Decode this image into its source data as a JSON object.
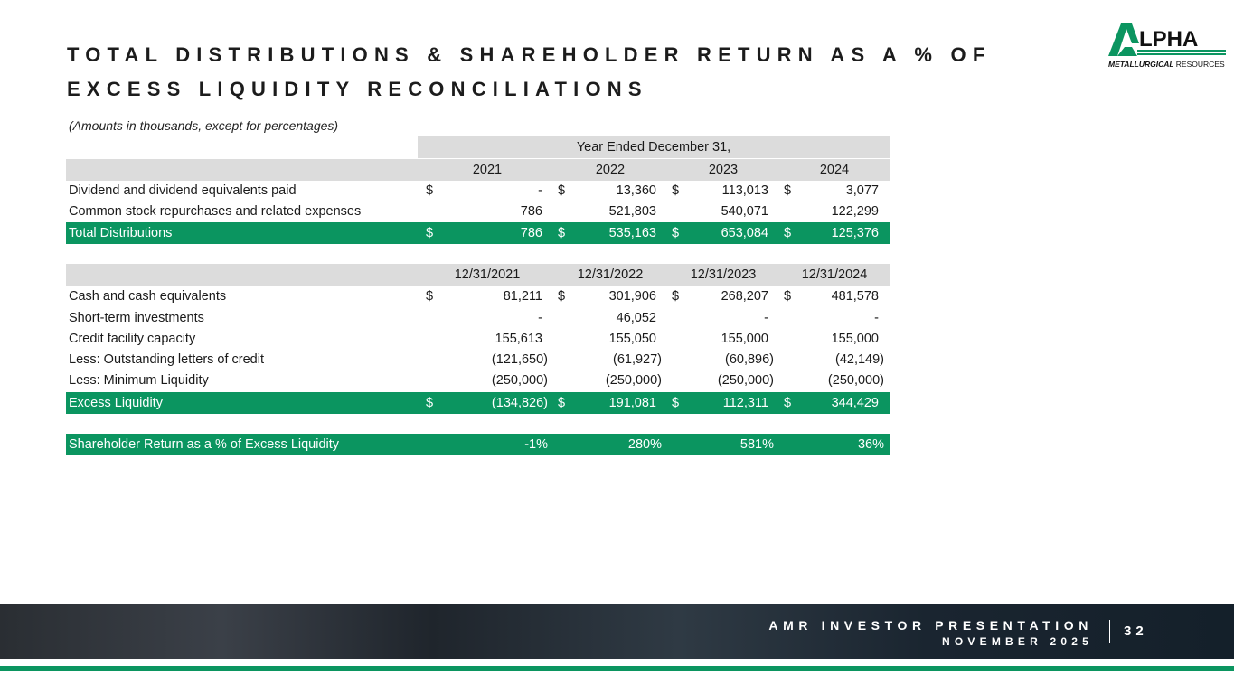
{
  "title": "TOTAL DISTRIBUTIONS & SHAREHOLDER RETURN AS A % OF\nEXCESS LIQUIDITY RECONCILIATIONS",
  "logo": {
    "text": "ALPHA",
    "subtext": "METALLURGICAL RESOURCES"
  },
  "note": "(Amounts in thousands, except for percentages)",
  "table1": {
    "band": "Year Ended December 31,",
    "headers": [
      "2021",
      "2022",
      "2023",
      "2024"
    ],
    "rows": [
      {
        "label": "Dividend and dividend equivalents paid",
        "dollar": true,
        "values": [
          "-",
          "13,360",
          "113,013",
          "3,077"
        ]
      },
      {
        "label": "Common stock repurchases and related expenses",
        "dollar": false,
        "values": [
          "786",
          "521,803",
          "540,071",
          "122,299"
        ]
      },
      {
        "label": "Total Distributions",
        "dollar": true,
        "total": true,
        "values": [
          "786",
          "535,163",
          "653,084",
          "125,376"
        ]
      }
    ]
  },
  "table2": {
    "headers": [
      "12/31/2021",
      "12/31/2022",
      "12/31/2023",
      "12/31/2024"
    ],
    "rows": [
      {
        "label": "Cash and cash equivalents",
        "dollar": true,
        "values": [
          "81,211",
          "301,906",
          "268,207",
          "481,578"
        ]
      },
      {
        "label": "Short-term investments",
        "dollar": false,
        "values": [
          "-",
          "46,052",
          "-",
          "-"
        ]
      },
      {
        "label": "Credit facility capacity",
        "dollar": false,
        "values": [
          "155,613",
          "155,050",
          "155,000",
          "155,000"
        ]
      },
      {
        "label": "Less: Outstanding letters of credit",
        "dollar": false,
        "values": [
          "(121,650)",
          "(61,927)",
          "(60,896)",
          "(42,149)"
        ]
      },
      {
        "label": "Less: Minimum Liquidity",
        "dollar": false,
        "values": [
          "(250,000)",
          "(250,000)",
          "(250,000)",
          "(250,000)"
        ]
      },
      {
        "label": "Excess Liquidity",
        "dollar": true,
        "total": true,
        "values": [
          "(134,826)",
          "191,081",
          "112,311",
          "344,429"
        ]
      }
    ],
    "return_row": {
      "label": "Shareholder Return as a % of Excess Liquidity",
      "values": [
        "-1%",
        "280%",
        "581%",
        "36%"
      ]
    }
  },
  "footer": {
    "line1": "AMR INVESTOR PRESENTATION",
    "line2": "NOVEMBER 2025",
    "page": "32"
  },
  "colors": {
    "accent": "#0b9560",
    "header_grey": "#dcdcdc"
  }
}
